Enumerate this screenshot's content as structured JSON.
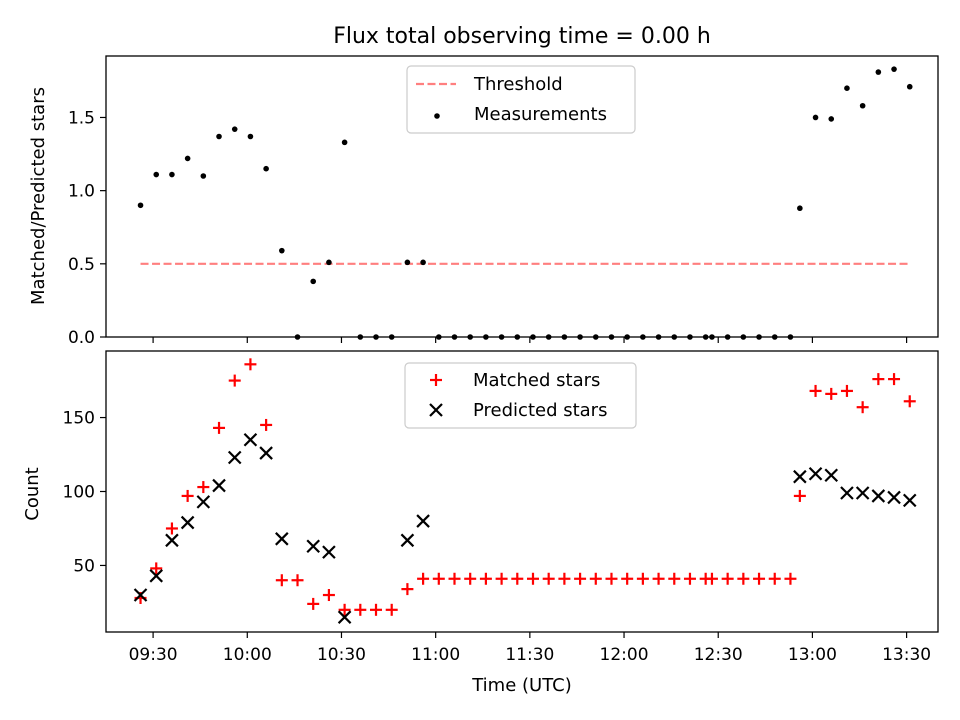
{
  "figure": {
    "title": "Flux total observing time = 0.00 h",
    "xlabel": "Time (UTC)"
  },
  "chart_data": [
    {
      "type": "scatter",
      "title": "Flux total observing time = 0.00 h",
      "xlabel": "",
      "ylabel": "Matched/Predicted stars",
      "ylim": [
        0,
        1.92
      ],
      "yticks": [
        0.0,
        0.5,
        1.0,
        1.5
      ],
      "ytick_labels": [
        "0.0",
        "0.5",
        "1.0",
        "1.5"
      ],
      "x_range": [
        "09:15",
        "13:40"
      ],
      "grid": false,
      "legend_position": "top-center",
      "series": [
        {
          "name": "Threshold",
          "kind": "line",
          "style": "dashed",
          "color": "#ff7f7f",
          "x": [
            "09:26",
            "13:31"
          ],
          "y": [
            0.5,
            0.5
          ]
        },
        {
          "name": "Measurements",
          "kind": "dot",
          "color": "#000000",
          "x": [
            "09:26",
            "09:31",
            "09:36",
            "09:41",
            "09:46",
            "09:51",
            "09:56",
            "10:01",
            "10:06",
            "10:11",
            "10:16",
            "10:21",
            "10:26",
            "10:31",
            "10:36",
            "10:41",
            "10:46",
            "10:51",
            "10:56",
            "11:01",
            "11:06",
            "11:11",
            "11:16",
            "11:21",
            "11:26",
            "11:31",
            "11:36",
            "11:41",
            "11:46",
            "11:51",
            "11:56",
            "12:01",
            "12:06",
            "12:11",
            "12:16",
            "12:21",
            "12:26",
            "12:28",
            "12:33",
            "12:38",
            "12:43",
            "12:48",
            "12:53",
            "12:56",
            "13:01",
            "13:06",
            "13:11",
            "13:16",
            "13:21",
            "13:26",
            "13:31"
          ],
          "y": [
            0.9,
            1.11,
            1.11,
            1.22,
            1.1,
            1.37,
            1.42,
            1.37,
            1.15,
            0.59,
            0.0,
            0.38,
            0.51,
            1.33,
            0.0,
            0.0,
            0.0,
            0.51,
            0.51,
            0.0,
            0.0,
            0.0,
            0.0,
            0.0,
            0.0,
            0.0,
            0.0,
            0.0,
            0.0,
            0.0,
            0.0,
            0.0,
            0.0,
            0.0,
            0.0,
            0.0,
            0.0,
            0.0,
            0.0,
            0.0,
            0.0,
            0.0,
            0.0,
            0.88,
            1.5,
            1.49,
            1.7,
            1.58,
            1.81,
            1.83,
            1.71
          ]
        }
      ]
    },
    {
      "type": "scatter",
      "xlabel": "Time (UTC)",
      "ylabel": "Count",
      "ylim": [
        5,
        195
      ],
      "yticks": [
        50,
        100,
        150
      ],
      "ytick_labels": [
        "50",
        "100",
        "150"
      ],
      "x_range": [
        "09:15",
        "13:40"
      ],
      "xticks": [
        "09:30",
        "10:00",
        "10:30",
        "11:00",
        "11:30",
        "12:00",
        "12:30",
        "13:00",
        "13:30"
      ],
      "xtick_labels": [
        "09:30",
        "10:00",
        "10:30",
        "11:00",
        "11:30",
        "12:00",
        "12:30",
        "13:00",
        "13:30"
      ],
      "grid": false,
      "legend_position": "top-center",
      "series": [
        {
          "name": "Matched stars",
          "kind": "plus",
          "color": "#ff0000",
          "x": [
            "09:26",
            "09:31",
            "09:36",
            "09:41",
            "09:46",
            "09:51",
            "09:56",
            "10:01",
            "10:06",
            "10:11",
            "10:16",
            "10:21",
            "10:26",
            "10:31",
            "10:36",
            "10:41",
            "10:46",
            "10:51",
            "10:56",
            "11:01",
            "11:06",
            "11:11",
            "11:16",
            "11:21",
            "11:26",
            "11:31",
            "11:36",
            "11:41",
            "11:46",
            "11:51",
            "11:56",
            "12:01",
            "12:06",
            "12:11",
            "12:16",
            "12:21",
            "12:26",
            "12:28",
            "12:33",
            "12:38",
            "12:43",
            "12:48",
            "12:53",
            "12:56",
            "13:01",
            "13:06",
            "13:11",
            "13:16",
            "13:21",
            "13:26",
            "13:31"
          ],
          "y": [
            28,
            48,
            75,
            97,
            103,
            143,
            175,
            186,
            145,
            40,
            40,
            24,
            30,
            20,
            20,
            20,
            20,
            34,
            41,
            41,
            41,
            41,
            41,
            41,
            41,
            41,
            41,
            41,
            41,
            41,
            41,
            41,
            41,
            41,
            41,
            41,
            41,
            41,
            41,
            41,
            41,
            41,
            41,
            97,
            168,
            166,
            168,
            157,
            176,
            176,
            161
          ]
        },
        {
          "name": "Predicted stars",
          "kind": "x",
          "color": "#000000",
          "x": [
            "09:26",
            "09:31",
            "09:36",
            "09:41",
            "09:46",
            "09:51",
            "09:56",
            "10:01",
            "10:06",
            "10:11",
            "10:21",
            "10:26",
            "10:31",
            "10:51",
            "10:56",
            "12:56",
            "13:01",
            "13:06",
            "13:11",
            "13:16",
            "13:21",
            "13:26",
            "13:31"
          ],
          "y": [
            30,
            43,
            67,
            79,
            93,
            104,
            123,
            135,
            126,
            68,
            63,
            59,
            15,
            67,
            80,
            110,
            112,
            111,
            99,
            99,
            97,
            96,
            94
          ]
        }
      ]
    }
  ]
}
